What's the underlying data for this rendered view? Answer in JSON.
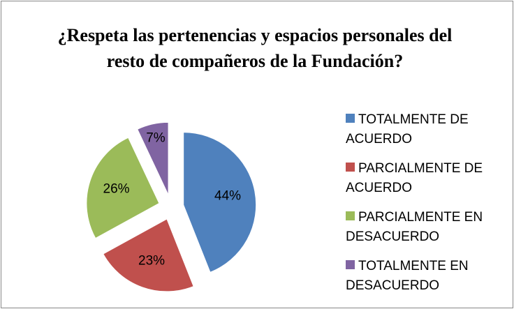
{
  "chart_data": {
    "type": "pie",
    "title": "¿Respeta las pertenencias y espacios personales del resto de compañeros de la Fundación?",
    "categories": [
      "TOTALMENTE DE ACUERDO",
      "PARCIALMENTE DE ACUERDO",
      "PARCIALMENTE EN DESACUERDO",
      "TOTALMENTE EN DESACUERDO"
    ],
    "values": [
      44,
      23,
      26,
      7
    ],
    "value_labels": [
      "44%",
      "23%",
      "26%",
      "7%"
    ],
    "colors": [
      "#4f81bd",
      "#c0504d",
      "#9bbb59",
      "#8064a2"
    ],
    "legend": "right"
  }
}
